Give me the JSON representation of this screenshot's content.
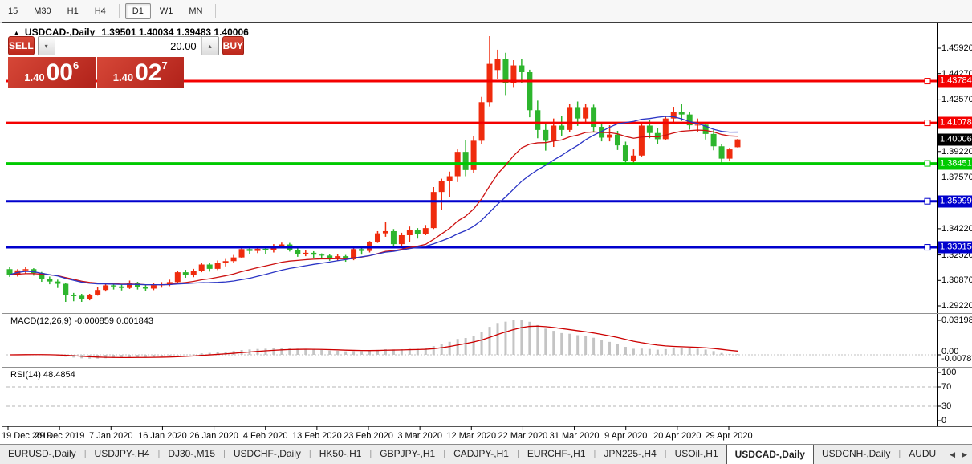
{
  "toolbar": {
    "timeframes": [
      "15",
      "M30",
      "H1",
      "H4",
      "D1",
      "W1",
      "MN"
    ],
    "active": "D1",
    "separators_after": [
      "H4",
      "MN"
    ]
  },
  "chart": {
    "collapse_icon": "▲",
    "title": "USDCAD-,Daily",
    "ohlc_text": "1.39501 1.40034 1.39483 1.40006"
  },
  "trade_panel": {
    "sell_label": "SELL",
    "buy_label": "BUY",
    "volume": "20.00",
    "spin_down_icon": "▾",
    "spin_up_icon": "▴",
    "sell_price": {
      "prefix": "1.40",
      "big": "00",
      "sup": "6"
    },
    "buy_price": {
      "prefix": "1.40",
      "big": "02",
      "sup": "7"
    }
  },
  "y_axis": {
    "ticks": [
      "1.45920",
      "1.44270",
      "1.42570",
      "1.40920",
      "1.39220",
      "1.37570",
      "1.35920",
      "1.34220",
      "1.32520",
      "1.30870",
      "1.29220"
    ]
  },
  "macd_panel": {
    "label": "MACD(12,26,9)",
    "values": "-0.000859 0.001843",
    "axis_top": "0.031987",
    "axis_zero": "0.00",
    "axis_bottom": "-0.007879"
  },
  "rsi_panel": {
    "label": "RSI(14)",
    "value": "48.4854",
    "axis": [
      "100",
      "70",
      "30",
      "0"
    ]
  },
  "x_axis": {
    "dates": [
      "19 Dec 2019",
      "29 Dec 2019",
      "7 Jan 2020",
      "16 Jan 2020",
      "26 Jan 2020",
      "4 Feb 2020",
      "13 Feb 2020",
      "23 Feb 2020",
      "3 Mar 2020",
      "12 Mar 2020",
      "22 Mar 2020",
      "31 Mar 2020",
      "9 Apr 2020",
      "20 Apr 2020",
      "29 Apr 2020"
    ]
  },
  "tabs": {
    "items": [
      "EURUSD-,Daily",
      "USDJPY-,H4",
      "DJ30-,M15",
      "USDCHF-,Daily",
      "HK50-,H1",
      "GBPJPY-,H1",
      "CADJPY-,H1",
      "EURCHF-,H1",
      "JPN225-,H4",
      "USOil-,H1",
      "USDCAD-,Daily",
      "USDCNH-,Daily",
      "AUDU"
    ],
    "active": "USDCAD-,Daily",
    "scroll_left": "◀",
    "scroll_right": "▶"
  },
  "chart_data": {
    "type": "candlestick",
    "symbol": "USDCAD",
    "timeframe": "Daily",
    "title": "USDCAD-,Daily",
    "current_bar": {
      "open": 1.39501,
      "high": 1.40034,
      "low": 1.39483,
      "close": 1.40006
    },
    "visible_price_range": [
      1.2886,
      1.4732
    ],
    "colors": {
      "bull": "#ef2b0d",
      "bear": "#2db52d",
      "ma_fast": "#cc1111",
      "ma_slow": "#2b35c5",
      "level_red": "#f40000",
      "level_green": "#00ca00",
      "level_blue": "#0000cd",
      "current_tag_bg": "#000000",
      "macd_hist": "#c4c4c4",
      "macd_signal": "#cc0000",
      "rsi_line": "#4e9be0"
    },
    "levels": [
      {
        "price": 1.43784,
        "label": "1.43784",
        "color": "level_red"
      },
      {
        "price": 1.41078,
        "label": "1.41078",
        "color": "level_red"
      },
      {
        "price": 1.38451,
        "label": "1.38451",
        "color": "level_green"
      },
      {
        "price": 1.35999,
        "label": "1.35999",
        "color": "level_blue"
      },
      {
        "price": 1.33015,
        "label": "1.33015",
        "color": "level_blue"
      }
    ],
    "current_price_tag": {
      "price": 1.40006,
      "label": "1.40006"
    },
    "rsi_levels": [
      70,
      30
    ],
    "candles": [
      [
        1.316,
        1.3175,
        1.311,
        1.3125
      ],
      [
        1.3125,
        1.316,
        1.3112,
        1.3152
      ],
      [
        1.3152,
        1.3172,
        1.313,
        1.316
      ],
      [
        1.316,
        1.3166,
        1.3118,
        1.3135
      ],
      [
        1.3135,
        1.3142,
        1.3078,
        1.3095
      ],
      [
        1.3095,
        1.3112,
        1.3062,
        1.308
      ],
      [
        1.308,
        1.3092,
        1.3038,
        1.3065
      ],
      [
        1.3065,
        1.3072,
        1.2948,
        1.299
      ],
      [
        1.299,
        1.3006,
        1.2952,
        1.2988
      ],
      [
        1.2988,
        1.3,
        1.2948,
        1.2968
      ],
      [
        1.2968,
        1.3,
        1.2958,
        1.2995
      ],
      [
        1.2995,
        1.3042,
        1.2988,
        1.3025
      ],
      [
        1.3025,
        1.3068,
        1.3015,
        1.3055
      ],
      [
        1.3055,
        1.3066,
        1.3028,
        1.3048
      ],
      [
        1.3048,
        1.306,
        1.3022,
        1.3038
      ],
      [
        1.3038,
        1.3086,
        1.3032,
        1.307
      ],
      [
        1.307,
        1.3078,
        1.3028,
        1.3044
      ],
      [
        1.3044,
        1.3058,
        1.3016,
        1.3034
      ],
      [
        1.3034,
        1.307,
        1.3024,
        1.3056
      ],
      [
        1.3056,
        1.3076,
        1.304,
        1.3062
      ],
      [
        1.3062,
        1.3092,
        1.305,
        1.3076
      ],
      [
        1.3076,
        1.315,
        1.307,
        1.314
      ],
      [
        1.314,
        1.3156,
        1.3104,
        1.3124
      ],
      [
        1.3124,
        1.3162,
        1.3108,
        1.3146
      ],
      [
        1.3146,
        1.3202,
        1.314,
        1.319
      ],
      [
        1.319,
        1.32,
        1.3144,
        1.3162
      ],
      [
        1.3162,
        1.3216,
        1.3154,
        1.32
      ],
      [
        1.32,
        1.3226,
        1.3178,
        1.3212
      ],
      [
        1.3212,
        1.3252,
        1.3202,
        1.3236
      ],
      [
        1.3236,
        1.3302,
        1.323,
        1.329
      ],
      [
        1.329,
        1.3306,
        1.3258,
        1.3278
      ],
      [
        1.3278,
        1.331,
        1.3264,
        1.3292
      ],
      [
        1.3292,
        1.3302,
        1.3258,
        1.3284
      ],
      [
        1.3284,
        1.3322,
        1.3268,
        1.3306
      ],
      [
        1.3306,
        1.3332,
        1.3294,
        1.332
      ],
      [
        1.332,
        1.333,
        1.3274,
        1.3286
      ],
      [
        1.3286,
        1.3296,
        1.324,
        1.3256
      ],
      [
        1.3256,
        1.3282,
        1.3244,
        1.3266
      ],
      [
        1.3266,
        1.3276,
        1.3234,
        1.3254
      ],
      [
        1.3254,
        1.3262,
        1.3226,
        1.3248
      ],
      [
        1.3248,
        1.326,
        1.3214,
        1.3226
      ],
      [
        1.3226,
        1.3256,
        1.3216,
        1.3244
      ],
      [
        1.3244,
        1.3252,
        1.3208,
        1.3224
      ],
      [
        1.3224,
        1.3296,
        1.3218,
        1.329
      ],
      [
        1.329,
        1.3306,
        1.3254,
        1.3278
      ],
      [
        1.3278,
        1.3342,
        1.3268,
        1.3336
      ],
      [
        1.3336,
        1.3406,
        1.333,
        1.3392
      ],
      [
        1.3392,
        1.3464,
        1.337,
        1.3406
      ],
      [
        1.3406,
        1.342,
        1.3302,
        1.3322
      ],
      [
        1.3322,
        1.3396,
        1.331,
        1.338
      ],
      [
        1.338,
        1.3436,
        1.3338,
        1.3412
      ],
      [
        1.3412,
        1.3426,
        1.3358,
        1.339
      ],
      [
        1.339,
        1.3446,
        1.338,
        1.3426
      ],
      [
        1.3426,
        1.3692,
        1.342,
        1.366
      ],
      [
        1.366,
        1.3746,
        1.3546,
        1.373
      ],
      [
        1.373,
        1.3792,
        1.3628,
        1.3762
      ],
      [
        1.3762,
        1.3936,
        1.3724,
        1.392
      ],
      [
        1.392,
        1.3996,
        1.3762,
        1.3802
      ],
      [
        1.3802,
        1.4022,
        1.3782,
        1.3992
      ],
      [
        1.3992,
        1.4276,
        1.3968,
        1.4242
      ],
      [
        1.4242,
        1.467,
        1.4214,
        1.449
      ],
      [
        1.445,
        1.4582,
        1.4392,
        1.4522
      ],
      [
        1.4522,
        1.4562,
        1.4288,
        1.4366
      ],
      [
        1.4366,
        1.4514,
        1.434,
        1.448
      ],
      [
        1.448,
        1.4522,
        1.4368,
        1.4436
      ],
      [
        1.4436,
        1.4452,
        1.4144,
        1.419
      ],
      [
        1.419,
        1.4252,
        1.4008,
        1.4062
      ],
      [
        1.4062,
        1.4112,
        1.3928,
        1.3992
      ],
      [
        1.3992,
        1.4136,
        1.3952,
        1.409
      ],
      [
        1.409,
        1.4152,
        1.4022,
        1.4062
      ],
      [
        1.4062,
        1.4232,
        1.4048,
        1.421
      ],
      [
        1.421,
        1.4246,
        1.4088,
        1.4136
      ],
      [
        1.4136,
        1.4232,
        1.4108,
        1.421
      ],
      [
        1.421,
        1.4226,
        1.4048,
        1.4082
      ],
      [
        1.4082,
        1.4106,
        1.3988,
        1.4012
      ],
      [
        1.4012,
        1.4092,
        1.3988,
        1.4032
      ],
      [
        1.4032,
        1.4056,
        1.3932,
        1.3962
      ],
      [
        1.3962,
        1.3986,
        1.3852,
        1.3862
      ],
      [
        1.3862,
        1.3936,
        1.384,
        1.3896
      ],
      [
        1.3896,
        1.4106,
        1.389,
        1.409
      ],
      [
        1.409,
        1.4126,
        1.4008,
        1.4042
      ],
      [
        1.4042,
        1.4072,
        1.3968,
        1.4002
      ],
      [
        1.4002,
        1.4152,
        1.3996,
        1.4136
      ],
      [
        1.4136,
        1.4212,
        1.411,
        1.4176
      ],
      [
        1.4176,
        1.4232,
        1.412,
        1.4162
      ],
      [
        1.4162,
        1.4176,
        1.4064,
        1.4092
      ],
      [
        1.4092,
        1.4136,
        1.405,
        1.4096
      ],
      [
        1.4096,
        1.4112,
        1.4,
        1.4036
      ],
      [
        1.4036,
        1.4062,
        1.393,
        1.3956
      ],
      [
        1.3956,
        1.3972,
        1.385,
        1.3876
      ],
      [
        1.3876,
        1.3946,
        1.3858,
        1.3936
      ],
      [
        1.39501,
        1.40034,
        1.39483,
        1.40006
      ]
    ],
    "indicators": {
      "ma_fast": {
        "type": "EMA",
        "period": 20
      },
      "ma_slow": {
        "type": "SMA",
        "period": 24
      },
      "macd": {
        "fast": 12,
        "slow": 26,
        "signal": 9,
        "current_values": [
          -0.000859,
          0.001843
        ]
      },
      "rsi": {
        "period": 14,
        "current_value": 48.4854
      }
    }
  }
}
